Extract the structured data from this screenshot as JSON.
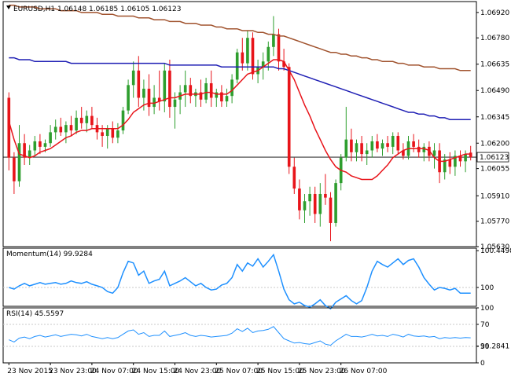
{
  "colors": {
    "bull": "#2e9e2e",
    "bear": "#e8141a",
    "sma_fast": "#e8141a",
    "sma_mid": "#1f1fb4",
    "sma_slow": "#a0522d",
    "momentum": "#1e90ff",
    "rsi": "#1e90ff",
    "grid": "#c8c8c8",
    "frame": "#000000",
    "price_line": "#000000"
  },
  "chart_data": [
    {
      "type": "candlestick",
      "header": "EURUSD,H1  1.06148 1.06185 1.06105 1.06123",
      "ylim": [
        1.0563,
        1.0698
      ],
      "y_ticks": [
        1.0692,
        1.0678,
        1.06635,
        1.0649,
        1.06345,
        1.062,
        1.0606,
        1.0591,
        1.0577,
        1.0563
      ],
      "y_tick_labels": [
        "1.06920",
        "1.06780",
        "1.06635",
        "1.06490",
        "1.06345",
        "1.06200",
        "1.06055",
        "1.05910",
        "1.05770",
        "1.05630"
      ],
      "current_price": 1.06123,
      "current_price_label": "1.06123",
      "candles": [
        {
          "o": 1.0645,
          "h": 1.0648,
          "l": 1.0605,
          "c": 1.0612
        },
        {
          "o": 1.0612,
          "h": 1.0615,
          "l": 1.0592,
          "c": 1.0599
        },
        {
          "o": 1.0599,
          "h": 1.063,
          "l": 1.0596,
          "c": 1.062
        },
        {
          "o": 1.062,
          "h": 1.0625,
          "l": 1.0608,
          "c": 1.0612
        },
        {
          "o": 1.0612,
          "h": 1.0619,
          "l": 1.0608,
          "c": 1.0616
        },
        {
          "o": 1.0616,
          "h": 1.0624,
          "l": 1.0613,
          "c": 1.0621
        },
        {
          "o": 1.0621,
          "h": 1.0625,
          "l": 1.0614,
          "c": 1.0618
        },
        {
          "o": 1.0618,
          "h": 1.0622,
          "l": 1.0615,
          "c": 1.062
        },
        {
          "o": 1.062,
          "h": 1.063,
          "l": 1.0618,
          "c": 1.0626
        },
        {
          "o": 1.0626,
          "h": 1.0633,
          "l": 1.0622,
          "c": 1.0629
        },
        {
          "o": 1.0629,
          "h": 1.0634,
          "l": 1.0624,
          "c": 1.0626
        },
        {
          "o": 1.0626,
          "h": 1.0632,
          "l": 1.062,
          "c": 1.063
        },
        {
          "o": 1.063,
          "h": 1.0635,
          "l": 1.0624,
          "c": 1.0627
        },
        {
          "o": 1.0627,
          "h": 1.0638,
          "l": 1.0625,
          "c": 1.0634
        },
        {
          "o": 1.0634,
          "h": 1.064,
          "l": 1.0628,
          "c": 1.0631
        },
        {
          "o": 1.0631,
          "h": 1.0638,
          "l": 1.0626,
          "c": 1.0635
        },
        {
          "o": 1.0635,
          "h": 1.064,
          "l": 1.0628,
          "c": 1.063
        },
        {
          "o": 1.063,
          "h": 1.0634,
          "l": 1.0622,
          "c": 1.0626
        },
        {
          "o": 1.0626,
          "h": 1.063,
          "l": 1.0618,
          "c": 1.0624
        },
        {
          "o": 1.0624,
          "h": 1.063,
          "l": 1.0617,
          "c": 1.0628
        },
        {
          "o": 1.0628,
          "h": 1.0632,
          "l": 1.062,
          "c": 1.0623
        },
        {
          "o": 1.0623,
          "h": 1.0631,
          "l": 1.062,
          "c": 1.0627
        },
        {
          "o": 1.0627,
          "h": 1.064,
          "l": 1.0625,
          "c": 1.0638
        },
        {
          "o": 1.0638,
          "h": 1.0655,
          "l": 1.0636,
          "c": 1.0652
        },
        {
          "o": 1.0652,
          "h": 1.0665,
          "l": 1.0645,
          "c": 1.066
        },
        {
          "o": 1.066,
          "h": 1.0668,
          "l": 1.064,
          "c": 1.0645
        },
        {
          "o": 1.0645,
          "h": 1.0655,
          "l": 1.0638,
          "c": 1.065
        },
        {
          "o": 1.065,
          "h": 1.0658,
          "l": 1.0635,
          "c": 1.064
        },
        {
          "o": 1.064,
          "h": 1.0652,
          "l": 1.0636,
          "c": 1.0645
        },
        {
          "o": 1.0645,
          "h": 1.066,
          "l": 1.0638,
          "c": 1.0643
        },
        {
          "o": 1.0643,
          "h": 1.0664,
          "l": 1.0637,
          "c": 1.066
        },
        {
          "o": 1.066,
          "h": 1.0666,
          "l": 1.0634,
          "c": 1.064
        },
        {
          "o": 1.064,
          "h": 1.0648,
          "l": 1.0628,
          "c": 1.0644
        },
        {
          "o": 1.0644,
          "h": 1.0652,
          "l": 1.0636,
          "c": 1.0648
        },
        {
          "o": 1.0648,
          "h": 1.066,
          "l": 1.064,
          "c": 1.0652
        },
        {
          "o": 1.0652,
          "h": 1.0656,
          "l": 1.0642,
          "c": 1.0646
        },
        {
          "o": 1.0646,
          "h": 1.065,
          "l": 1.064,
          "c": 1.0648
        },
        {
          "o": 1.0648,
          "h": 1.0655,
          "l": 1.064,
          "c": 1.0644
        },
        {
          "o": 1.0644,
          "h": 1.0656,
          "l": 1.0642,
          "c": 1.0653
        },
        {
          "o": 1.0653,
          "h": 1.066,
          "l": 1.064,
          "c": 1.0645
        },
        {
          "o": 1.0645,
          "h": 1.065,
          "l": 1.064,
          "c": 1.0648
        },
        {
          "o": 1.0648,
          "h": 1.0652,
          "l": 1.064,
          "c": 1.0643
        },
        {
          "o": 1.0643,
          "h": 1.065,
          "l": 1.064,
          "c": 1.0646
        },
        {
          "o": 1.0646,
          "h": 1.0658,
          "l": 1.0642,
          "c": 1.0655
        },
        {
          "o": 1.0655,
          "h": 1.0672,
          "l": 1.0653,
          "c": 1.067
        },
        {
          "o": 1.067,
          "h": 1.0678,
          "l": 1.066,
          "c": 1.0664
        },
        {
          "o": 1.0664,
          "h": 1.0682,
          "l": 1.066,
          "c": 1.0678
        },
        {
          "o": 1.0678,
          "h": 1.0681,
          "l": 1.0655,
          "c": 1.0658
        },
        {
          "o": 1.0658,
          "h": 1.0666,
          "l": 1.0653,
          "c": 1.0662
        },
        {
          "o": 1.0662,
          "h": 1.067,
          "l": 1.0655,
          "c": 1.0665
        },
        {
          "o": 1.0665,
          "h": 1.0676,
          "l": 1.066,
          "c": 1.0673
        },
        {
          "o": 1.0673,
          "h": 1.069,
          "l": 1.0668,
          "c": 1.068
        },
        {
          "o": 1.068,
          "h": 1.0683,
          "l": 1.066,
          "c": 1.0665
        },
        {
          "o": 1.0665,
          "h": 1.0672,
          "l": 1.066,
          "c": 1.0662
        },
        {
          "o": 1.0662,
          "h": 1.0664,
          "l": 1.0603,
          "c": 1.0607
        },
        {
          "o": 1.0607,
          "h": 1.0612,
          "l": 1.0592,
          "c": 1.0595
        },
        {
          "o": 1.0595,
          "h": 1.06,
          "l": 1.0578,
          "c": 1.0583
        },
        {
          "o": 1.0583,
          "h": 1.0592,
          "l": 1.0576,
          "c": 1.0588
        },
        {
          "o": 1.0588,
          "h": 1.0596,
          "l": 1.058,
          "c": 1.0592
        },
        {
          "o": 1.0592,
          "h": 1.0596,
          "l": 1.0576,
          "c": 1.0581
        },
        {
          "o": 1.0581,
          "h": 1.0598,
          "l": 1.0574,
          "c": 1.0592
        },
        {
          "o": 1.0592,
          "h": 1.0603,
          "l": 1.0586,
          "c": 1.059
        },
        {
          "o": 1.059,
          "h": 1.0593,
          "l": 1.0566,
          "c": 1.0576
        },
        {
          "o": 1.0576,
          "h": 1.06,
          "l": 1.0574,
          "c": 1.0598
        },
        {
          "o": 1.0598,
          "h": 1.0614,
          "l": 1.0594,
          "c": 1.0612
        },
        {
          "o": 1.0612,
          "h": 1.064,
          "l": 1.061,
          "c": 1.0622
        },
        {
          "o": 1.0622,
          "h": 1.0628,
          "l": 1.061,
          "c": 1.0615
        },
        {
          "o": 1.0615,
          "h": 1.0622,
          "l": 1.061,
          "c": 1.062
        },
        {
          "o": 1.062,
          "h": 1.0624,
          "l": 1.061,
          "c": 1.0614
        },
        {
          "o": 1.0614,
          "h": 1.062,
          "l": 1.0608,
          "c": 1.0616
        },
        {
          "o": 1.0616,
          "h": 1.0624,
          "l": 1.0612,
          "c": 1.0621
        },
        {
          "o": 1.0621,
          "h": 1.0625,
          "l": 1.0615,
          "c": 1.0617
        },
        {
          "o": 1.0617,
          "h": 1.0622,
          "l": 1.0613,
          "c": 1.062
        },
        {
          "o": 1.062,
          "h": 1.0624,
          "l": 1.0615,
          "c": 1.0618
        },
        {
          "o": 1.0618,
          "h": 1.0626,
          "l": 1.0614,
          "c": 1.0624
        },
        {
          "o": 1.0624,
          "h": 1.0626,
          "l": 1.0614,
          "c": 1.0616
        },
        {
          "o": 1.0616,
          "h": 1.062,
          "l": 1.0611,
          "c": 1.0613
        },
        {
          "o": 1.0613,
          "h": 1.0624,
          "l": 1.0611,
          "c": 1.0621
        },
        {
          "o": 1.0621,
          "h": 1.0625,
          "l": 1.0615,
          "c": 1.0618
        },
        {
          "o": 1.0618,
          "h": 1.0622,
          "l": 1.0612,
          "c": 1.0615
        },
        {
          "o": 1.0615,
          "h": 1.062,
          "l": 1.061,
          "c": 1.0618
        },
        {
          "o": 1.0618,
          "h": 1.0621,
          "l": 1.061,
          "c": 1.0613
        },
        {
          "o": 1.0613,
          "h": 1.062,
          "l": 1.0606,
          "c": 1.0616
        },
        {
          "o": 1.0616,
          "h": 1.062,
          "l": 1.0598,
          "c": 1.0604
        },
        {
          "o": 1.0604,
          "h": 1.0614,
          "l": 1.06,
          "c": 1.0611
        },
        {
          "o": 1.0611,
          "h": 1.0615,
          "l": 1.0603,
          "c": 1.0607
        },
        {
          "o": 1.0607,
          "h": 1.0616,
          "l": 1.0602,
          "c": 1.0613
        },
        {
          "o": 1.0613,
          "h": 1.0616,
          "l": 1.0607,
          "c": 1.061
        },
        {
          "o": 1.061,
          "h": 1.0616,
          "l": 1.0604,
          "c": 1.0614
        },
        {
          "o": 1.06148,
          "h": 1.06185,
          "l": 1.06105,
          "c": 1.06123
        }
      ],
      "sma_fast": [
        1.0632,
        1.0622,
        1.0614,
        1.0613,
        1.0612,
        1.0613,
        1.0615,
        1.0616,
        1.0617,
        1.0619,
        1.0621,
        1.0623,
        1.0624,
        1.0626,
        1.0627,
        1.0627,
        1.0628,
        1.0628,
        1.0628,
        1.0628,
        1.0628,
        1.0628,
        1.063,
        1.0633,
        1.0637,
        1.0639,
        1.0641,
        1.0642,
        1.0642,
        1.0643,
        1.0644,
        1.0645,
        1.0645,
        1.0646,
        1.0647,
        1.0647,
        1.0647,
        1.0647,
        1.0648,
        1.0648,
        1.0647,
        1.0647,
        1.0647,
        1.0649,
        1.0652,
        1.0655,
        1.0658,
        1.0659,
        1.066,
        1.0662,
        1.0664,
        1.0666,
        1.0666,
        1.0665,
        1.066,
        1.0655,
        1.0648,
        1.0641,
        1.0635,
        1.0628,
        1.0622,
        1.0616,
        1.0611,
        1.0607,
        1.0605,
        1.0604,
        1.0602,
        1.0601,
        1.06,
        1.06,
        1.06,
        1.0602,
        1.0605,
        1.0608,
        1.0612,
        1.0614,
        1.0616,
        1.0617,
        1.0617,
        1.0617,
        1.0617,
        1.0616,
        1.0612,
        1.061,
        1.061,
        1.0611,
        1.0612,
        1.0613,
        1.0614,
        1.0614
      ],
      "sma_mid": [
        1.0667,
        1.0667,
        1.0666,
        1.0666,
        1.0666,
        1.0665,
        1.0665,
        1.0665,
        1.0665,
        1.0665,
        1.0665,
        1.0665,
        1.0664,
        1.0664,
        1.0664,
        1.0664,
        1.0664,
        1.0664,
        1.0664,
        1.0664,
        1.0664,
        1.0664,
        1.0664,
        1.0664,
        1.0664,
        1.0664,
        1.0664,
        1.0664,
        1.0664,
        1.0664,
        1.0664,
        1.0663,
        1.0663,
        1.0663,
        1.0663,
        1.0663,
        1.0663,
        1.0663,
        1.0663,
        1.0663,
        1.0663,
        1.0662,
        1.0662,
        1.0662,
        1.0662,
        1.0662,
        1.0662,
        1.0662,
        1.0662,
        1.0662,
        1.0662,
        1.0662,
        1.0661,
        1.0661,
        1.066,
        1.0659,
        1.0658,
        1.0657,
        1.0656,
        1.0655,
        1.0654,
        1.0653,
        1.0652,
        1.0651,
        1.065,
        1.0649,
        1.0648,
        1.0647,
        1.0646,
        1.0645,
        1.0644,
        1.0643,
        1.0642,
        1.0641,
        1.064,
        1.0639,
        1.0638,
        1.0637,
        1.0637,
        1.0636,
        1.0636,
        1.0635,
        1.0635,
        1.0634,
        1.0634,
        1.0633,
        1.0633,
        1.0633,
        1.0633,
        1.0633
      ],
      "sma_slow": [
        1.0696,
        1.0696,
        1.0695,
        1.0695,
        1.0695,
        1.0695,
        1.0694,
        1.0694,
        1.0694,
        1.0694,
        1.0693,
        1.0693,
        1.0693,
        1.0693,
        1.0692,
        1.0692,
        1.0692,
        1.0692,
        1.0691,
        1.0691,
        1.0691,
        1.069,
        1.069,
        1.069,
        1.069,
        1.0689,
        1.0689,
        1.0689,
        1.0688,
        1.0688,
        1.0688,
        1.0687,
        1.0687,
        1.0687,
        1.0686,
        1.0686,
        1.0686,
        1.0685,
        1.0685,
        1.0685,
        1.0684,
        1.0684,
        1.0683,
        1.0683,
        1.0683,
        1.0682,
        1.0682,
        1.0682,
        1.0681,
        1.0681,
        1.068,
        1.068,
        1.0679,
        1.0679,
        1.0678,
        1.0677,
        1.0676,
        1.0675,
        1.0674,
        1.0673,
        1.0672,
        1.0671,
        1.067,
        1.067,
        1.0669,
        1.0669,
        1.0668,
        1.0668,
        1.0667,
        1.0667,
        1.0666,
        1.0666,
        1.0665,
        1.0665,
        1.0665,
        1.0664,
        1.0664,
        1.0663,
        1.0663,
        1.0663,
        1.0662,
        1.0662,
        1.0662,
        1.0661,
        1.0661,
        1.0661,
        1.0661,
        1.066,
        1.066,
        1.066
      ]
    },
    {
      "type": "line",
      "header": "Momentum(14) 99.9284",
      "ylim": [
        99.77,
        100.48
      ],
      "y_ticks": [
        100.4498,
        100.0,
        99.2841
      ],
      "y_tick_labels": [
        "100.4498",
        "100",
        "99.2841"
      ],
      "reference_line": 100,
      "values": [
        100.0,
        99.98,
        100.02,
        100.05,
        100.02,
        100.04,
        100.06,
        100.04,
        100.05,
        100.06,
        100.04,
        100.05,
        100.08,
        100.06,
        100.05,
        100.07,
        100.04,
        100.02,
        100.0,
        99.95,
        99.93,
        100.0,
        100.18,
        100.32,
        100.3,
        100.15,
        100.2,
        100.05,
        100.08,
        100.1,
        100.2,
        100.02,
        100.05,
        100.08,
        100.12,
        100.07,
        100.02,
        100.05,
        100.0,
        99.97,
        99.98,
        100.03,
        100.05,
        100.12,
        100.28,
        100.2,
        100.3,
        100.26,
        100.35,
        100.25,
        100.32,
        100.4,
        100.2,
        99.98,
        99.85,
        99.8,
        99.82,
        99.78,
        99.76,
        99.8,
        99.85,
        99.78,
        99.74,
        99.82,
        99.86,
        99.9,
        99.84,
        99.8,
        99.84,
        100.0,
        100.2,
        100.32,
        100.28,
        100.25,
        100.3,
        100.35,
        100.28,
        100.33,
        100.35,
        100.25,
        100.12,
        100.04,
        99.97,
        100.0,
        99.99,
        99.97,
        99.99,
        99.93,
        99.93,
        99.93
      ]
    },
    {
      "type": "line",
      "header": "RSI(14) 45.5597",
      "ylim": [
        0,
        100
      ],
      "y_ticks": [
        100,
        70,
        30,
        0
      ],
      "y_tick_labels": [
        "100",
        "70",
        "30",
        "0"
      ],
      "reference_lines": [
        70,
        30
      ],
      "values": [
        42,
        38,
        45,
        47,
        44,
        48,
        50,
        47,
        49,
        51,
        48,
        50,
        52,
        51,
        49,
        52,
        48,
        46,
        44,
        46,
        44,
        46,
        52,
        58,
        60,
        52,
        55,
        48,
        50,
        50,
        58,
        48,
        50,
        52,
        55,
        50,
        48,
        50,
        49,
        47,
        48,
        49,
        50,
        54,
        62,
        57,
        63,
        55,
        58,
        59,
        61,
        66,
        55,
        44,
        40,
        36,
        37,
        35,
        34,
        37,
        40,
        34,
        32,
        40,
        46,
        52,
        48,
        48,
        47,
        49,
        52,
        49,
        50,
        48,
        52,
        50,
        47,
        52,
        49,
        48,
        49,
        47,
        48,
        44,
        46,
        45,
        46,
        45,
        46,
        45.5597
      ]
    }
  ],
  "x_axis": {
    "labels": [
      "23 Nov 2015",
      "23 Nov 23:00",
      "24 Nov 07:00",
      "24 Nov 15:00",
      "24 Nov 23:00",
      "25 Nov 07:00",
      "25 Nov 15:00",
      "25 Nov 23:00",
      "26 Nov 07:00"
    ],
    "label_bar_index": [
      0,
      8,
      16,
      24,
      32,
      40,
      48,
      56,
      64
    ]
  }
}
